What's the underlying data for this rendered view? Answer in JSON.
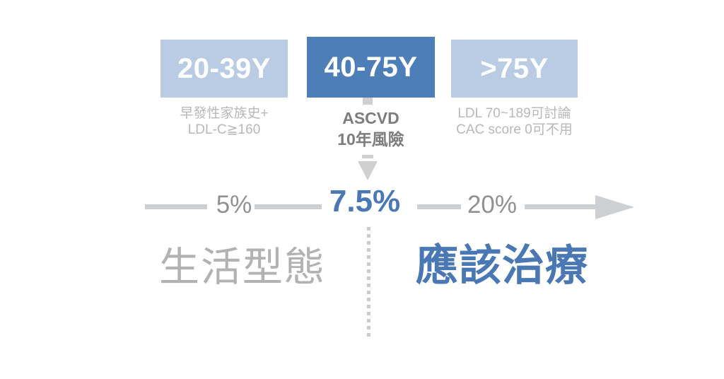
{
  "colors": {
    "box_light_blue": "#b9cce4",
    "box_dark_blue": "#4d7eb8",
    "accent_blue": "#4a78b5",
    "note_gray_light": "#b8b8b8",
    "note_gray_dark": "#7d7d7d",
    "axis_gray": "#cdd0d2",
    "tick_gray": "#8f9193",
    "zone_left_gray": "#b2b2b2"
  },
  "age_groups": [
    {
      "label": "20-39Y",
      "notes": [
        "早發性家族史+",
        "LDL-C≧160"
      ]
    },
    {
      "label": "40-75Y",
      "notes": [
        "ASCVD",
        "10年風險"
      ]
    },
    {
      "label": ">75Y",
      "notes": [
        "LDL 70~189可討論",
        "CAC score 0可不用"
      ]
    }
  ],
  "risk_axis": {
    "ticks": [
      "5%",
      "7.5%",
      "20%"
    ],
    "threshold": "7.5%"
  },
  "zones": {
    "left_label": "生活型態",
    "right_label": "應該治療"
  }
}
